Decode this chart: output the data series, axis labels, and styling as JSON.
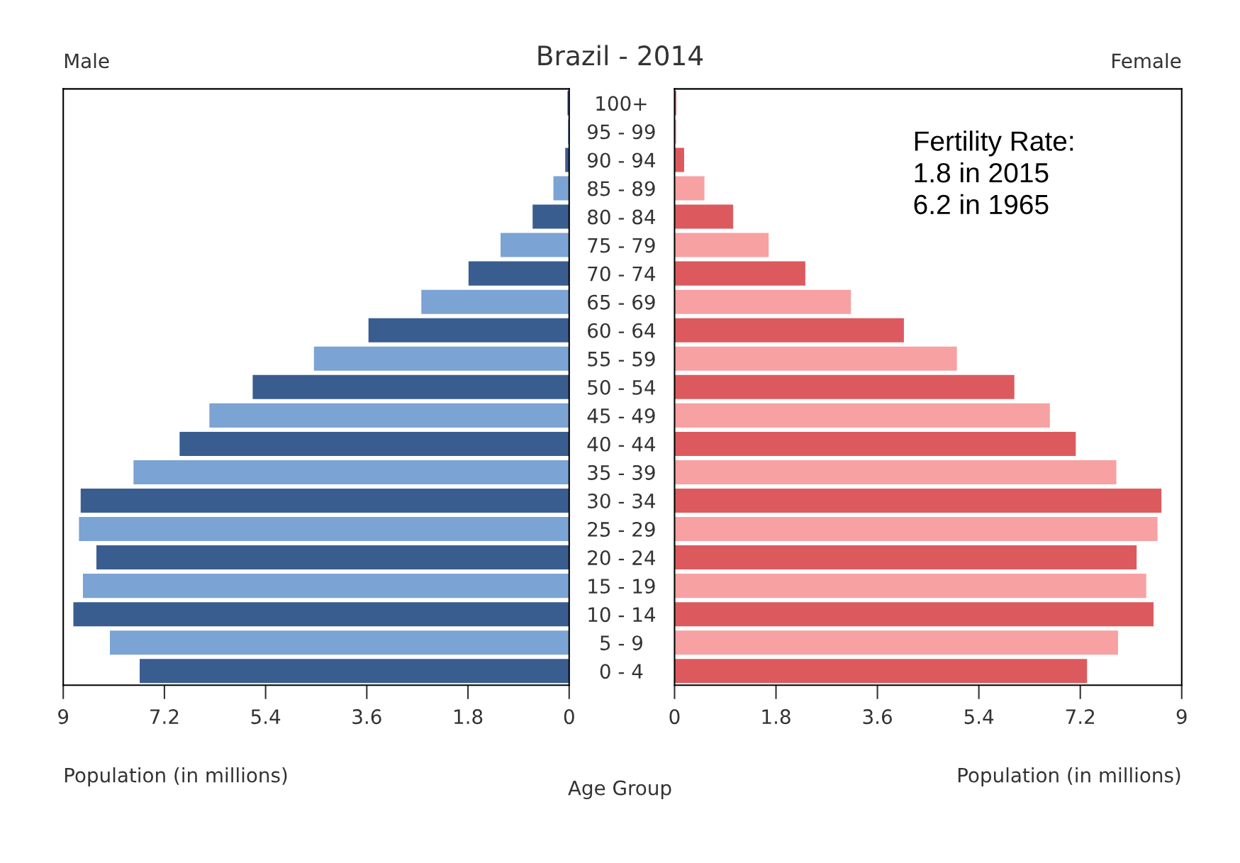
{
  "chart_data": [
    {
      "type": "bar",
      "orientation": "horizontal",
      "title": "Brazil - 2014",
      "subtitle": "Male",
      "xlabel": "Population (in millions)",
      "annotations": [
        "Age Group"
      ],
      "categories": [
        "100+",
        "95 - 99",
        "90 - 94",
        "85 - 89",
        "80 - 84",
        "75 - 79",
        "70 - 74",
        "65 - 69",
        "60 - 64",
        "55 - 59",
        "50 - 54",
        "45 - 49",
        "40 - 44",
        "35 - 39",
        "30 - 34",
        "25 - 29",
        "20 - 24",
        "15 - 19",
        "10 - 14",
        "5 - 9",
        "0 - 4"
      ],
      "values": [
        0.03,
        0.02,
        0.07,
        0.28,
        0.65,
        1.22,
        1.79,
        2.63,
        3.57,
        4.54,
        5.63,
        6.4,
        6.93,
        7.75,
        8.69,
        8.72,
        8.41,
        8.65,
        8.82,
        8.17,
        7.64
      ],
      "colors": [
        "#3a5d8f",
        "#7ba3d3",
        "#3a5d8f",
        "#7ba3d3",
        "#3a5d8f",
        "#7ba3d3",
        "#3a5d8f",
        "#7ba3d3",
        "#3a5d8f",
        "#7ba3d3",
        "#3a5d8f",
        "#7ba3d3",
        "#3a5d8f",
        "#7ba3d3",
        "#3a5d8f",
        "#7ba3d3",
        "#3a5d8f",
        "#7ba3d3",
        "#3a5d8f",
        "#7ba3d3",
        "#3a5d8f"
      ],
      "xlim": [
        9,
        0
      ],
      "xticks": [
        9,
        7.2,
        5.4,
        3.6,
        1.8,
        0
      ],
      "grid": false,
      "legend": false
    },
    {
      "type": "bar",
      "orientation": "horizontal",
      "subtitle": "Female",
      "xlabel": "Population (in millions)",
      "annotations": [
        "Fertility Rate:\n1.8 in 2015\n6.2 in 1965"
      ],
      "categories": [
        null,
        null,
        null,
        null,
        null,
        null,
        null,
        null,
        null,
        null,
        null,
        null,
        null,
        null,
        null,
        null,
        null,
        null,
        null,
        null,
        null
      ],
      "values": [
        0.03,
        0.03,
        0.17,
        0.53,
        1.04,
        1.67,
        2.32,
        3.13,
        4.07,
        5.01,
        6.03,
        6.66,
        7.12,
        7.84,
        8.64,
        8.57,
        8.2,
        8.37,
        8.5,
        7.87,
        7.32
      ],
      "colors": [
        "#dc5a5e",
        "#f7a1a3",
        "#dc5a5e",
        "#f7a1a3",
        "#dc5a5e",
        "#f7a1a3",
        "#dc5a5e",
        "#f7a1a3",
        "#dc5a5e",
        "#f7a1a3",
        "#dc5a5e",
        "#f7a1a3",
        "#dc5a5e",
        "#f7a1a3",
        "#dc5a5e",
        "#f7a1a3",
        "#dc5a5e",
        "#f7a1a3",
        "#dc5a5e",
        "#f7a1a3",
        "#dc5a5e"
      ],
      "xlim": [
        0,
        9
      ],
      "xticks": [
        0,
        1.8,
        3.6,
        5.4,
        7.2,
        9
      ],
      "tick_labels": "x",
      "grid": false,
      "legend": false
    }
  ]
}
